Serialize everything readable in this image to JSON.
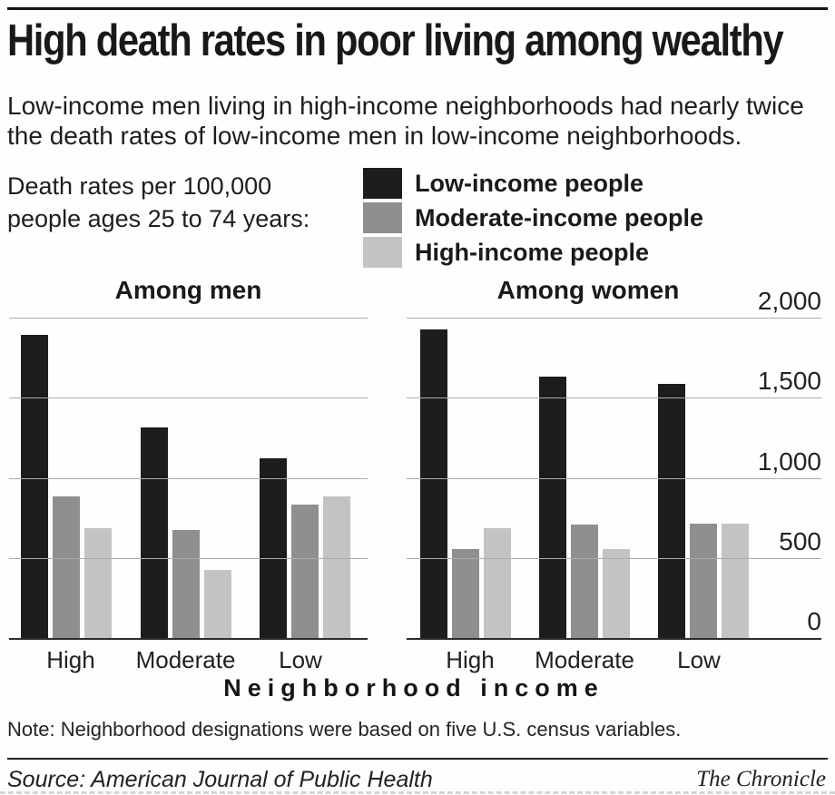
{
  "header": {
    "title": "High death rates in poor living among wealthy",
    "subtitle_line1": "Low-income men living in high-income neighborhoods had nearly twice",
    "subtitle_line2": "the death rates of low-income men in low-income neighborhoods.",
    "unit_line1": "Death rates per 100,000",
    "unit_line2": "people ages 25 to 74 years:"
  },
  "legend": {
    "items": [
      {
        "label": "Low-income people",
        "color": "#1e1c1d"
      },
      {
        "label": "Moderate-income people",
        "color": "#8f8f8f"
      },
      {
        "label": "High-income people",
        "color": "#c3c3c3"
      }
    ]
  },
  "chart_data": {
    "type": "bar",
    "title": "High death rates in poor living among wealthy",
    "unit_note": "Death rates per 100,000 people ages 25 to 74 years",
    "xlabel": "Neighborhood income",
    "ylabel": "",
    "categories": [
      "High",
      "Moderate",
      "Low"
    ],
    "ylim": [
      0,
      2000
    ],
    "yticks": [
      0,
      500,
      1000,
      1500,
      2000
    ],
    "ytick_labels": [
      "0",
      "500",
      "1,000",
      "1,500",
      "2,000"
    ],
    "grid": true,
    "legend_position": "top",
    "charts": [
      {
        "title": "Among men",
        "series": [
          {
            "name": "Low-income people",
            "values": [
              1900,
              1320,
              1130
            ]
          },
          {
            "name": "Moderate-income people",
            "values": [
              890,
              680,
              840
            ]
          },
          {
            "name": "High-income people",
            "values": [
              690,
              430,
              890
            ]
          }
        ]
      },
      {
        "title": "Among women",
        "series": [
          {
            "name": "Low-income people",
            "values": [
              1930,
              1640,
              1590
            ]
          },
          {
            "name": "Moderate-income people",
            "values": [
              560,
              715,
              720
            ]
          },
          {
            "name": "High-income people",
            "values": [
              690,
              560,
              720
            ]
          }
        ]
      }
    ]
  },
  "footer": {
    "note": "Note: Neighborhood designations were based on five U.S. census variables.",
    "source": "Source: American Journal of Public Health",
    "credit": "The Chronicle"
  }
}
